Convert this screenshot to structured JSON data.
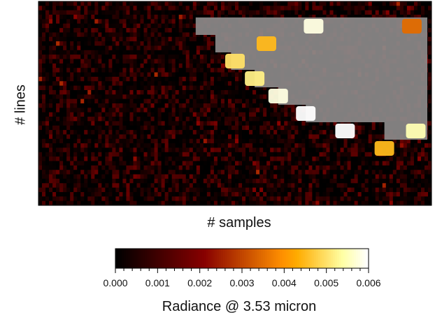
{
  "chart_data": {
    "type": "heatmap",
    "xlabel": "# samples",
    "ylabel": "# lines",
    "colorbar": {
      "label": "Radiance @ 3.53 micron",
      "colormap": "gist_heat",
      "range": [
        0.0,
        0.006
      ],
      "ticks": [
        "0.000",
        "0.001",
        "0.002",
        "0.003",
        "0.004",
        "0.005",
        "0.006"
      ],
      "minor_ticks_per_interval": 5
    },
    "grid": false,
    "masked_color": "#8c8a8a",
    "description_rows": [
      {
        "band": 1,
        "edge_fraction": 0.4,
        "hot_spots": [
          {
            "pos": 0.7,
            "value": 0.0058
          },
          {
            "pos": 0.95,
            "value": 0.0035
          }
        ]
      },
      {
        "band": 2,
        "edge_fraction": 0.45,
        "hot_spots": [
          {
            "pos": 0.58,
            "value": 0.0045
          }
        ]
      },
      {
        "band": 3,
        "edge_fraction": 0.49,
        "hot_spots": [
          {
            "pos": 0.5,
            "value": 0.005
          }
        ]
      },
      {
        "band": 4,
        "edge_fraction": 0.55,
        "hot_spots": [
          {
            "pos": 0.55,
            "value": 0.0052
          }
        ]
      },
      {
        "band": 5,
        "edge_fraction": 0.61,
        "hot_spots": [
          {
            "pos": 0.61,
            "value": 0.0058
          }
        ]
      },
      {
        "band": 6,
        "edge_fraction": 0.68,
        "hot_spots": [
          {
            "pos": 0.68,
            "value": 0.006
          }
        ]
      },
      {
        "band": 7,
        "edge_fraction": 0.88,
        "hot_spots": [
          {
            "pos": 0.78,
            "value": 0.006
          },
          {
            "pos": 0.96,
            "value": 0.0055
          }
        ]
      },
      {
        "band": 8,
        "edge_fraction": 1.0,
        "hot_spots": [
          {
            "pos": 0.88,
            "value": 0.0045
          }
        ]
      }
    ]
  }
}
